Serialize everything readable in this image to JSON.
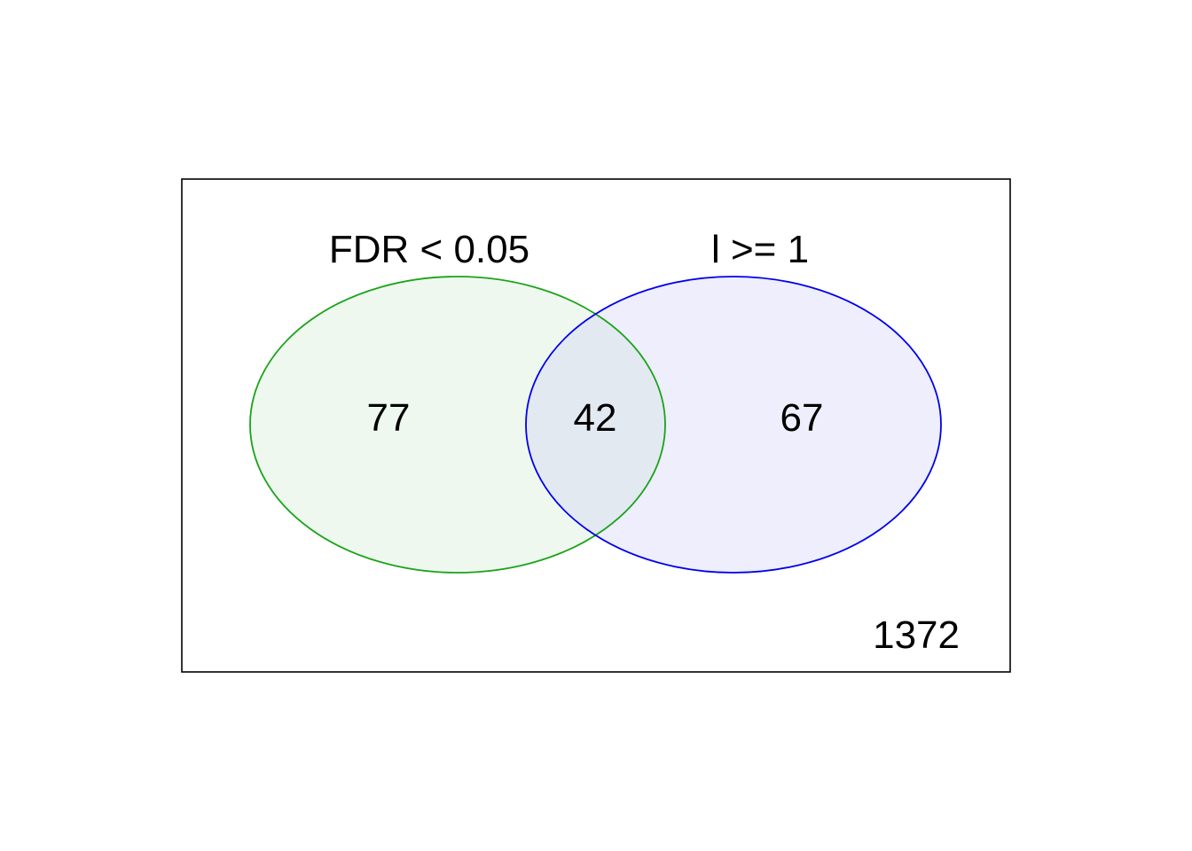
{
  "diagram": {
    "type": "venn",
    "sets": [
      {
        "label": "FDR < 0.05",
        "color": "#1aa31a",
        "fill": "#eef8ee"
      },
      {
        "label": "l >= 1",
        "color": "#0000ee",
        "fill": "#eeeefc"
      }
    ],
    "regions": {
      "only_first": "77",
      "intersection": "42",
      "only_second": "67",
      "outside": "1372"
    },
    "intersection_fill": "#e3e9f1",
    "border_color": "#000000"
  }
}
